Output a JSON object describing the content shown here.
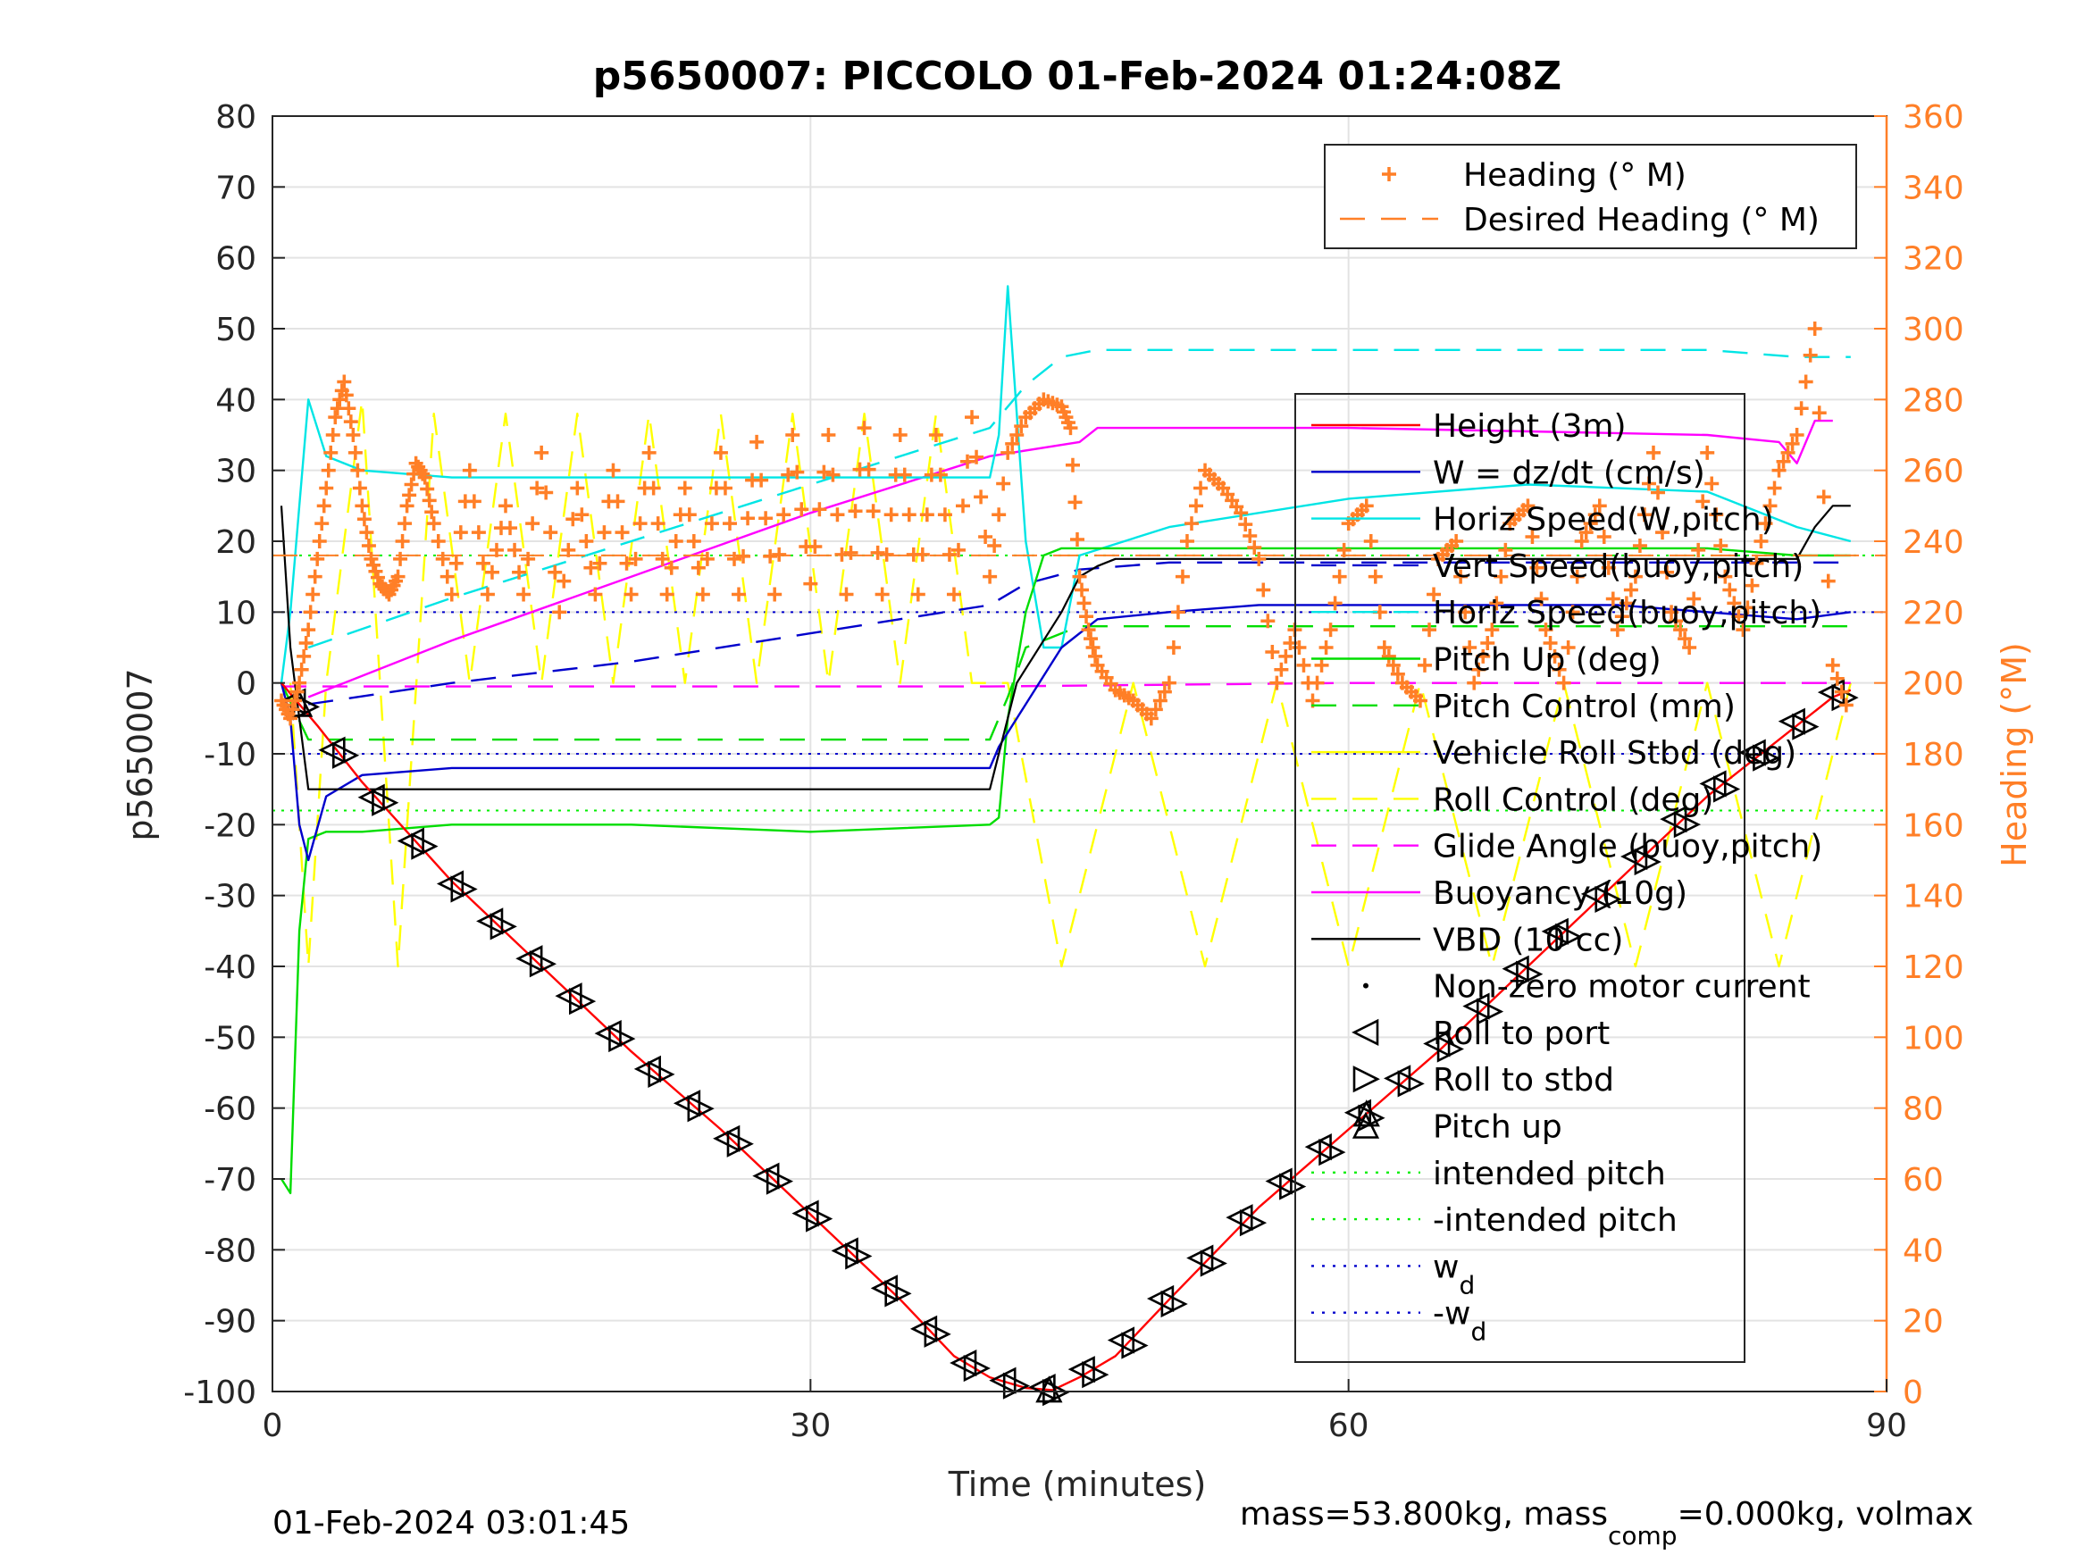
{
  "chart_data": {
    "type": "line",
    "title": "p5650007: PICCOLO 01-Feb-2024 01:24:08Z",
    "xlabel": "Time (minutes)",
    "ylabel_left": "p5650007",
    "ylabel_right": "Heading (°M)",
    "xlim": [
      0,
      90
    ],
    "ylim_left": [
      -100,
      80
    ],
    "ylim_right": [
      0,
      360
    ],
    "xticks": [
      0,
      30,
      60,
      90
    ],
    "yticks_left": [
      80,
      70,
      60,
      50,
      40,
      30,
      20,
      10,
      0,
      -10,
      -20,
      -30,
      -40,
      -50,
      -60,
      -70,
      -80,
      -90,
      -100
    ],
    "yticks_right": [
      360,
      340,
      320,
      300,
      280,
      260,
      240,
      220,
      200,
      180,
      160,
      140,
      120,
      100,
      80,
      60,
      40,
      20,
      0
    ],
    "grid": true,
    "footer_left": "01-Feb-2024 03:01:45",
    "footer_right": {
      "p1": "mass=53.800kg, mass",
      "sub": "comp",
      "p2": "=0.000kg, volmax"
    },
    "colors": {
      "heading": "#ff7f27",
      "right_axis": "#ff7f27",
      "depth": "#ff0000",
      "vbd": "#000000",
      "w": "#0000cc",
      "horiz_speed": "#00e5e5",
      "pitch": "#00dd00",
      "roll": "#ffff00",
      "glide": "#ff00ff",
      "buoyancy": "#ff00ff"
    },
    "legend_heading": {
      "position": "top-right",
      "entries": [
        {
          "label": "Heading (° M)",
          "color": "#ff7f27",
          "style": "plus"
        },
        {
          "label": "Desired Heading (° M)",
          "color": "#ff7f27",
          "style": "dash"
        }
      ]
    },
    "legend_main": {
      "position": "right",
      "entries": [
        {
          "label": "Height (3m)",
          "color": "#ff0000",
          "style": "solid"
        },
        {
          "label": "W = dz/dt (cm/s)",
          "color": "#0000cc",
          "style": "solid"
        },
        {
          "label": "Horiz Speed(W,pitch)",
          "color": "#00e5e5",
          "style": "solid"
        },
        {
          "label": "Vert Speed(buoy,pitch)",
          "color": "#0000cc",
          "style": "dash"
        },
        {
          "label": "Horiz Speed(buoy,pitch)",
          "color": "#00e5e5",
          "style": "dash"
        },
        {
          "label": "Pitch Up (deg)",
          "color": "#00dd00",
          "style": "solid"
        },
        {
          "label": "Pitch Control (mm)",
          "color": "#00dd00",
          "style": "dash"
        },
        {
          "label": "Vehicle Roll Stbd (deg)",
          "color": "#ffff00",
          "style": "solid"
        },
        {
          "label": "Roll Control (deg)",
          "color": "#ffff00",
          "style": "dash"
        },
        {
          "label": "Glide Angle (buoy,pitch)",
          "color": "#ff00ff",
          "style": "dash"
        },
        {
          "label": "Buoyancy (10g)",
          "color": "#ff00ff",
          "style": "solid"
        },
        {
          "label": "VBD (10 cc)",
          "color": "#000000",
          "style": "solid"
        },
        {
          "label": "Non-zero motor current",
          "color": "#000000",
          "style": "dot"
        },
        {
          "label": "Roll to port",
          "color": "#000000",
          "style": "tri-left"
        },
        {
          "label": "Roll to stbd",
          "color": "#000000",
          "style": "tri-right"
        },
        {
          "label": "Pitch up",
          "color": "#000000",
          "style": "tri-up"
        },
        {
          "label": "intended pitch",
          "color": "#00ee00",
          "style": "dotted"
        },
        {
          "label": "-intended pitch",
          "color": "#00ee00",
          "style": "dotted"
        },
        {
          "label": "w",
          "sub": "d",
          "color": "#0000cc",
          "style": "dotted"
        },
        {
          "label": "-w",
          "sub": "d",
          "color": "#0000cc",
          "style": "dotted"
        }
      ]
    },
    "reference_lines": {
      "intended_pitch": 18,
      "w_d": 10
    },
    "series": [
      {
        "name": "Height (3m)",
        "x": [
          0.5,
          1.5,
          2.5,
          5,
          10,
          15,
          20,
          25,
          30,
          35,
          38,
          40,
          42,
          43.5,
          45,
          47,
          50,
          55,
          60,
          65,
          70,
          75,
          80,
          85,
          87,
          88
        ],
        "y": [
          0,
          -3,
          -6,
          -14,
          -28,
          -40,
          -52,
          -63,
          -75,
          -87,
          -95,
          -98,
          -99.5,
          -99.8,
          -98,
          -95,
          -87,
          -74,
          -63,
          -52,
          -40,
          -28,
          -16,
          -6,
          -2,
          -1
        ]
      },
      {
        "name": "VBD (10 cc)",
        "x": [
          0.5,
          1,
          1.5,
          2,
          40,
          41.5,
          44,
          45,
          46,
          46.5,
          47,
          48,
          60,
          70,
          80,
          85,
          86,
          87,
          88
        ],
        "y": [
          25,
          5,
          -5,
          -15,
          -15,
          0,
          10,
          15,
          16.5,
          17,
          17.5,
          17.5,
          17.5,
          17.5,
          17.5,
          17.5,
          22,
          25,
          25
        ]
      },
      {
        "name": "W = dz/dt (cm/s)",
        "x": [
          0.5,
          1,
          1.5,
          2,
          3,
          5,
          10,
          20,
          30,
          40,
          40.5,
          42,
          44,
          46,
          50,
          55,
          60,
          65,
          70,
          75,
          80,
          85,
          88
        ],
        "y": [
          0,
          -5,
          -20,
          -25,
          -16,
          -13,
          -12,
          -12,
          -12,
          -12,
          -9,
          -3,
          5,
          9,
          10,
          11,
          11,
          11,
          11,
          11,
          10,
          9,
          10
        ]
      },
      {
        "name": "Horiz Speed(W,pitch)",
        "x": [
          0.5,
          1,
          1.5,
          2,
          3,
          5,
          10,
          20,
          30,
          40,
          40.5,
          41,
          42,
          43,
          44,
          45,
          50,
          60,
          70,
          80,
          85,
          88
        ],
        "y": [
          0,
          10,
          25,
          40,
          32,
          30,
          29,
          29,
          29,
          29,
          35,
          56,
          20,
          5,
          5,
          18,
          22,
          26,
          28,
          27,
          22,
          20
        ]
      },
      {
        "name": "Vert Speed(buoy,pitch)",
        "x": [
          2,
          10,
          20,
          30,
          40,
          42,
          45,
          50,
          60,
          70,
          80,
          88
        ],
        "y": [
          -3,
          0,
          3,
          7,
          11,
          14,
          16,
          17,
          17,
          17,
          17,
          17
        ]
      },
      {
        "name": "Horiz Speed(buoy,pitch)",
        "x": [
          2,
          10,
          20,
          30,
          40,
          42,
          44,
          46,
          50,
          60,
          70,
          80,
          85,
          88
        ],
        "y": [
          5,
          12,
          20,
          28,
          36,
          42,
          46,
          47,
          47,
          47,
          47,
          47,
          46,
          46
        ]
      },
      {
        "name": "Pitch Up (deg)",
        "x": [
          0.5,
          1,
          1.5,
          2,
          3,
          5,
          10,
          20,
          30,
          40,
          40.5,
          41,
          42,
          43,
          44,
          45,
          50,
          60,
          70,
          80,
          85,
          88
        ],
        "y": [
          -70,
          -72,
          -35,
          -22,
          -21,
          -21,
          -20,
          -20,
          -21,
          -20,
          -19,
          -5,
          10,
          18,
          19,
          19,
          19,
          19,
          19,
          19,
          18,
          18
        ]
      },
      {
        "name": "Pitch Control (mm)",
        "x": [
          0.5,
          2,
          5,
          10,
          20,
          30,
          40,
          41,
          42,
          45,
          50,
          60,
          70,
          80,
          88
        ],
        "y": [
          0,
          -8,
          -8,
          -8,
          -8,
          -8,
          -8,
          -2,
          5,
          8,
          8,
          8,
          8,
          8,
          8
        ]
      },
      {
        "name": "Roll Control (deg)",
        "x": [
          1,
          2,
          3,
          5,
          7,
          9,
          11,
          13,
          15,
          17,
          19,
          21,
          23,
          25,
          27,
          29,
          31,
          33,
          35,
          37,
          39,
          41,
          44,
          48,
          52,
          56,
          60,
          64,
          68,
          72,
          76,
          80,
          84,
          88
        ],
        "y": [
          0,
          -40,
          0,
          40,
          -40,
          38,
          0,
          38,
          0,
          38,
          0,
          38,
          0,
          38,
          0,
          38,
          0,
          38,
          0,
          38,
          0,
          0,
          -40,
          0,
          -40,
          0,
          -40,
          0,
          -40,
          0,
          -40,
          0,
          -40,
          0
        ]
      },
      {
        "name": "Glide Angle (buoy,pitch)",
        "x": [
          0.5,
          5,
          20,
          40,
          60,
          80,
          88
        ],
        "y": [
          -0.5,
          -0.5,
          -0.5,
          -0.5,
          0,
          0,
          0
        ]
      },
      {
        "name": "Buoyancy (10g)",
        "x": [
          2,
          10,
          20,
          30,
          40,
          45,
          46,
          50,
          60,
          70,
          80,
          84,
          85,
          86,
          87
        ],
        "y": [
          -2,
          6,
          15,
          24,
          32,
          34,
          36,
          36,
          36,
          35.5,
          35,
          34,
          31,
          37,
          37
        ]
      },
      {
        "name": "Heading (° M)",
        "x": [
          0.5,
          1,
          1.5,
          2,
          2.5,
          3,
          3.5,
          4,
          4.5,
          5,
          5.5,
          6,
          6.5,
          7,
          7.5,
          8,
          8.5,
          9,
          10,
          11,
          12,
          13,
          14,
          15,
          16,
          17,
          18,
          19,
          20,
          21,
          22,
          23,
          24,
          25,
          26,
          27,
          28,
          29,
          30,
          31,
          32,
          33,
          34,
          35,
          36,
          37,
          38,
          39,
          40,
          41,
          42,
          43,
          44,
          44.5,
          45,
          45.5,
          46,
          47,
          48,
          49,
          50,
          51,
          52,
          53,
          54,
          55,
          56,
          57,
          58,
          59,
          60,
          61,
          62,
          63,
          64,
          65,
          66,
          67,
          68,
          69,
          70,
          71,
          72,
          73,
          74,
          75,
          76,
          77,
          78,
          79,
          80,
          81,
          82,
          83,
          84,
          85,
          86,
          87,
          88
        ],
        "y": [
          195,
          190,
          200,
          215,
          235,
          255,
          275,
          285,
          270,
          250,
          235,
          228,
          225,
          230,
          250,
          262,
          258,
          245,
          225,
          260,
          225,
          250,
          225,
          265,
          220,
          255,
          225,
          260,
          225,
          265,
          225,
          255,
          225,
          265,
          225,
          268,
          225,
          270,
          228,
          270,
          225,
          272,
          225,
          270,
          225,
          270,
          225,
          275,
          230,
          265,
          275,
          280,
          278,
          272,
          230,
          215,
          205,
          198,
          195,
          190,
          200,
          240,
          260,
          255,
          248,
          235,
          200,
          215,
          195,
          215,
          245,
          250,
          210,
          200,
          195,
          235,
          240,
          200,
          215,
          245,
          250,
          215,
          200,
          240,
          250,
          215,
          230,
          265,
          220,
          210,
          265,
          230,
          215,
          240,
          260,
          270,
          300,
          205,
          190
        ]
      }
    ]
  }
}
